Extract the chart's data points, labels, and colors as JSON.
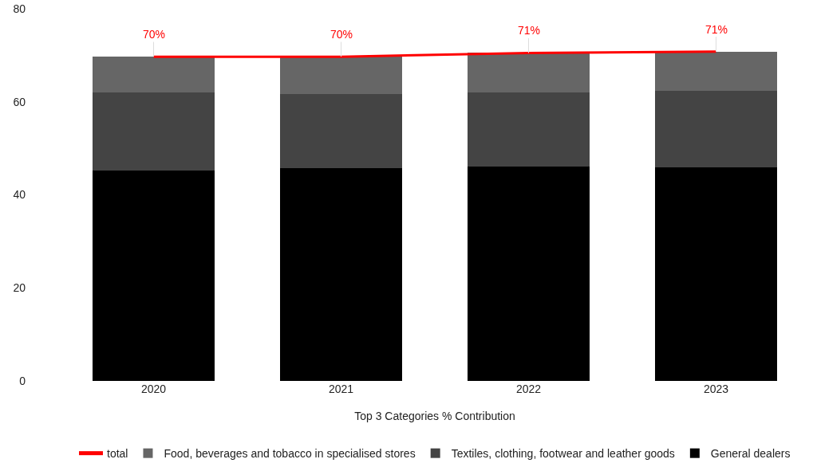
{
  "chart_data": {
    "type": "bar",
    "stacked": true,
    "xlabel": "Top 3 Categories % Contribution",
    "categories": [
      "2020",
      "2021",
      "2022",
      "2023"
    ],
    "series": [
      {
        "name": "General dealers",
        "color": "#000000",
        "values": [
          45.3,
          45.7,
          46.1,
          45.9
        ]
      },
      {
        "name": "Textiles, clothing, footwear and leather goods",
        "color": "#444444",
        "values": [
          16.7,
          15.9,
          15.9,
          16.4
        ]
      },
      {
        "name": "Food, beverages and tobacco in specialised stores",
        "color": "#666666",
        "values": [
          7.7,
          8.1,
          8.5,
          8.5
        ]
      },
      {
        "name": "total",
        "type": "line",
        "color": "#ff0000",
        "values": [
          69.7,
          69.7,
          70.5,
          70.8
        ],
        "value_labels": [
          "70%",
          "70%",
          "71%",
          "71%"
        ]
      }
    ],
    "ylim": [
      0,
      80
    ],
    "yticks": [
      0,
      20,
      40,
      60,
      80
    ],
    "legend": "bottom"
  }
}
